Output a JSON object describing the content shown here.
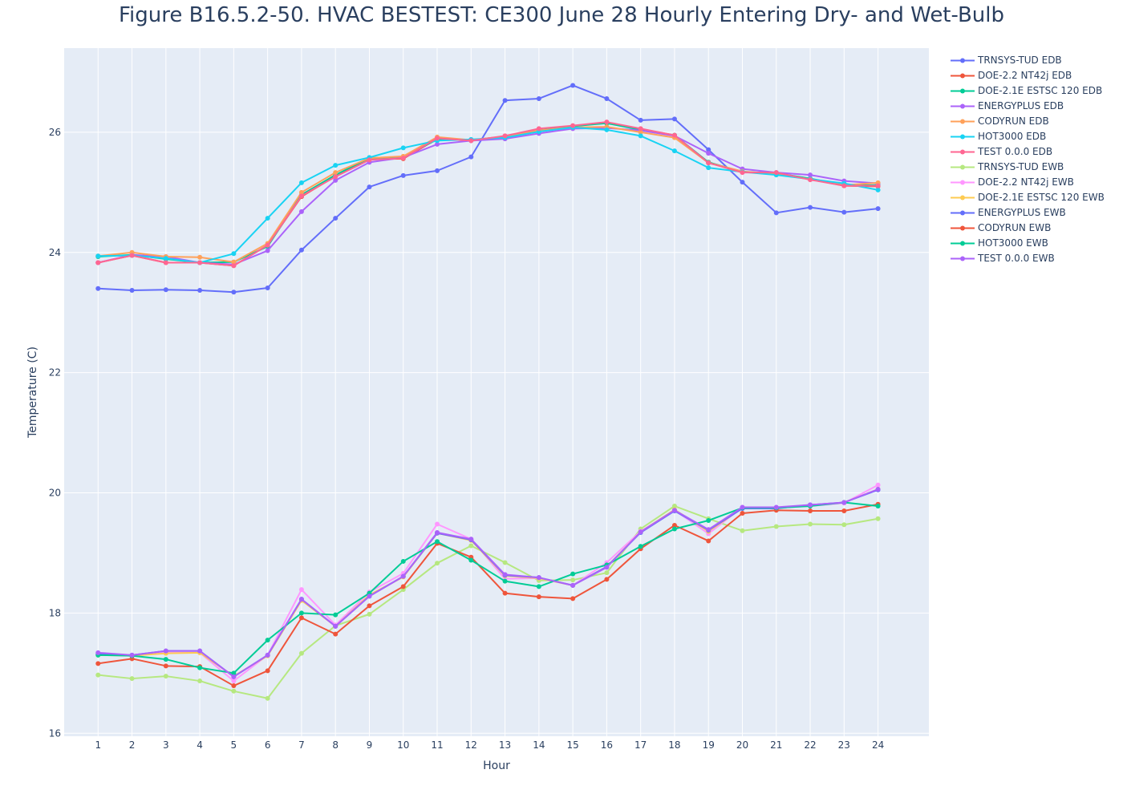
{
  "chart_data": {
    "type": "line",
    "title": "Figure B16.5.2-50. HVAC BESTEST: CE300 June 28 Hourly Entering Dry- and Wet-Bulb",
    "xlabel": "Hour",
    "ylabel": "Temperature (C)",
    "x": [
      1,
      2,
      3,
      4,
      5,
      6,
      7,
      8,
      9,
      10,
      11,
      12,
      13,
      14,
      15,
      16,
      17,
      18,
      19,
      20,
      21,
      22,
      23,
      24
    ],
    "xlim": [
      0,
      25.5
    ],
    "ylim": [
      15.95,
      27.4
    ],
    "yticks": [
      16,
      18,
      20,
      22,
      24,
      26
    ],
    "grid": true,
    "legend_position": "right",
    "series": [
      {
        "name": "TRNSYS-TUD EDB",
        "color": "#636efa",
        "values": [
          23.4,
          23.37,
          23.38,
          23.37,
          23.34,
          23.41,
          24.04,
          24.57,
          25.09,
          25.28,
          25.36,
          25.59,
          26.53,
          26.56,
          26.78,
          26.56,
          26.2,
          26.22,
          25.71,
          25.17,
          24.66,
          24.75,
          24.67,
          24.73
        ]
      },
      {
        "name": "DOE-2.2 NT42j EDB",
        "color": "#EF553B",
        "values": [
          23.83,
          23.95,
          23.83,
          23.83,
          23.78,
          24.12,
          24.93,
          25.27,
          25.55,
          25.56,
          25.89,
          25.86,
          25.93,
          26.03,
          26.1,
          26.16,
          26.05,
          25.95,
          25.5,
          25.34,
          25.32,
          25.22,
          25.11,
          25.1
        ]
      },
      {
        "name": "DOE-2.1E ESTSC 120 EDB",
        "color": "#00cc96",
        "values": [
          23.93,
          23.96,
          23.89,
          23.83,
          23.84,
          24.1,
          24.96,
          25.29,
          25.57,
          25.59,
          25.88,
          25.87,
          25.93,
          26.03,
          26.1,
          26.15,
          26.04,
          25.95,
          25.5,
          25.34,
          25.32,
          25.23,
          25.12,
          25.12
        ]
      },
      {
        "name": "ENERGYPLUS EDB",
        "color": "#ab63fa",
        "values": [
          23.83,
          23.96,
          23.93,
          23.83,
          23.8,
          24.03,
          24.68,
          25.2,
          25.5,
          25.58,
          25.8,
          25.86,
          25.89,
          25.98,
          26.06,
          26.07,
          26.03,
          25.94,
          25.65,
          25.39,
          25.33,
          25.29,
          25.19,
          25.15
        ]
      },
      {
        "name": "CODYRUN EDB",
        "color": "#FFA15A",
        "values": [
          23.94,
          24.0,
          23.93,
          23.92,
          23.84,
          24.15,
          25.0,
          25.33,
          25.57,
          25.6,
          25.92,
          25.87,
          25.93,
          26.03,
          26.08,
          26.09,
          26.0,
          25.91,
          25.49,
          25.35,
          25.3,
          25.22,
          25.12,
          25.16
        ]
      },
      {
        "name": "HOT3000 EDB",
        "color": "#19d3f3",
        "values": [
          23.94,
          23.95,
          23.9,
          23.83,
          23.98,
          24.57,
          25.16,
          25.45,
          25.58,
          25.74,
          25.86,
          25.88,
          25.91,
          26.01,
          26.08,
          26.04,
          25.94,
          25.69,
          25.41,
          25.34,
          25.29,
          25.22,
          25.15,
          25.04
        ]
      },
      {
        "name": "TEST 0.0.0 EDB",
        "color": "#FF6692",
        "values": [
          23.83,
          23.95,
          23.83,
          23.83,
          23.78,
          24.12,
          24.94,
          25.26,
          25.54,
          25.57,
          25.9,
          25.86,
          25.94,
          26.06,
          26.11,
          26.17,
          26.06,
          25.95,
          25.49,
          25.33,
          25.33,
          25.21,
          25.11,
          25.11
        ]
      },
      {
        "name": "TRNSYS-TUD EWB",
        "color": "#B6E880",
        "values": [
          16.97,
          16.91,
          16.95,
          16.87,
          16.7,
          16.58,
          17.33,
          17.79,
          17.98,
          18.39,
          18.83,
          19.12,
          18.84,
          18.54,
          18.55,
          18.67,
          19.4,
          19.78,
          19.57,
          19.37,
          19.44,
          19.48,
          19.47,
          19.57
        ]
      },
      {
        "name": "DOE-2.2 NT42j EWB",
        "color": "#FF97FF",
        "values": [
          17.32,
          17.29,
          17.34,
          17.34,
          16.87,
          17.3,
          18.39,
          17.8,
          18.35,
          18.66,
          19.48,
          19.23,
          18.57,
          18.58,
          18.46,
          18.84,
          19.36,
          19.71,
          19.32,
          19.76,
          19.75,
          19.78,
          19.83,
          20.13
        ]
      },
      {
        "name": "DOE-2.1E ESTSC 120 EWB",
        "color": "#FECB52",
        "values": [
          17.3,
          17.29,
          17.33,
          17.34,
          16.95,
          17.29,
          18.21,
          17.78,
          18.3,
          18.6,
          19.33,
          19.21,
          18.62,
          18.58,
          18.46,
          18.77,
          19.35,
          19.72,
          19.36,
          19.75,
          19.75,
          19.79,
          19.84,
          20.06
        ]
      },
      {
        "name": "ENERGYPLUS EWB",
        "color": "#636efa",
        "values": [
          17.32,
          17.3,
          17.37,
          17.37,
          16.94,
          17.3,
          18.23,
          17.78,
          18.28,
          18.61,
          19.33,
          19.22,
          18.63,
          18.59,
          18.46,
          18.77,
          19.34,
          19.7,
          19.38,
          19.74,
          19.74,
          19.8,
          19.84,
          20.05
        ]
      },
      {
        "name": "CODYRUN EWB",
        "color": "#EF553B",
        "values": [
          17.16,
          17.24,
          17.12,
          17.11,
          16.79,
          17.04,
          17.92,
          17.65,
          18.12,
          18.44,
          19.16,
          18.93,
          18.33,
          18.27,
          18.24,
          18.56,
          19.07,
          19.46,
          19.2,
          19.66,
          19.71,
          19.7,
          19.7,
          19.81
        ]
      },
      {
        "name": "HOT3000 EWB",
        "color": "#00cc96",
        "values": [
          17.3,
          17.29,
          17.23,
          17.09,
          17.0,
          17.55,
          18.0,
          17.97,
          18.33,
          18.86,
          19.19,
          18.88,
          18.53,
          18.44,
          18.65,
          18.8,
          19.11,
          19.4,
          19.54,
          19.75,
          19.75,
          19.78,
          19.84,
          19.78
        ]
      },
      {
        "name": "TEST 0.0.0 EWB",
        "color": "#ab63fa",
        "values": [
          17.34,
          17.3,
          17.37,
          17.37,
          16.94,
          17.3,
          18.23,
          17.78,
          18.28,
          18.61,
          19.34,
          19.23,
          18.64,
          18.59,
          18.46,
          18.76,
          19.35,
          19.71,
          19.39,
          19.76,
          19.76,
          19.8,
          19.84,
          20.06
        ]
      }
    ]
  }
}
